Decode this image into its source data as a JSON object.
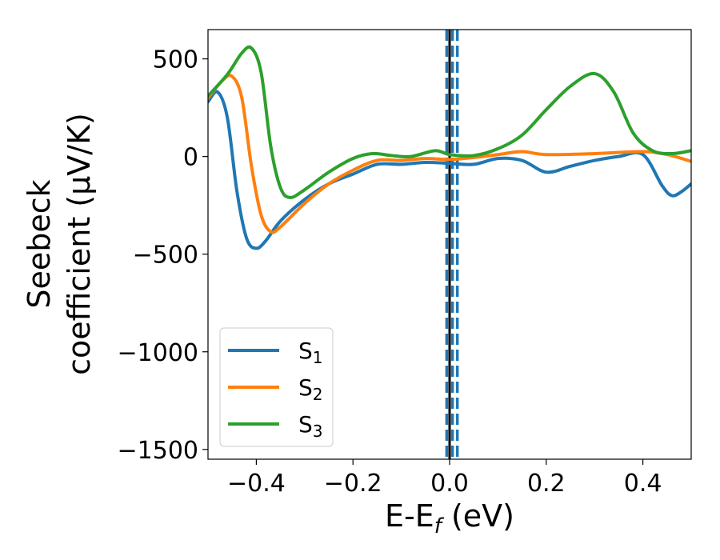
{
  "chart_data": {
    "type": "line",
    "title": "",
    "xlabel": "E-E_f (eV)",
    "xlabel_parts": {
      "prefix": "E-E",
      "sub": "f",
      "suffix": " (eV)"
    },
    "ylabel_line1": "Seebeck",
    "ylabel_line2": "coefficient  (μV/K)",
    "xlim": [
      -0.5,
      0.5
    ],
    "ylim": [
      -1550,
      650
    ],
    "xticks": [
      -0.4,
      -0.2,
      0.0,
      0.2,
      0.4
    ],
    "xtick_labels": [
      "−0.4",
      "−0.2",
      "0.0",
      "0.2",
      "0.4"
    ],
    "yticks": [
      -1500,
      -1000,
      -500,
      0,
      500
    ],
    "ytick_labels": [
      "−1500",
      "−1000",
      "−500",
      "0",
      "500"
    ],
    "grid": false,
    "legend_position": "lower-left",
    "vlines": [
      {
        "x": 0.0,
        "color": "#000000",
        "style": "solid"
      },
      {
        "x": -0.006,
        "color": "#1f77b4",
        "style": "dashed"
      },
      {
        "x": 0.006,
        "color": "#1f77b4",
        "style": "dashed"
      },
      {
        "x": 0.016,
        "color": "#1f77b4",
        "style": "dashed"
      }
    ],
    "series": [
      {
        "name": "S1",
        "label_main": "S",
        "label_sub": "1",
        "color": "#1f77b4",
        "x": [
          -0.5,
          -0.48,
          -0.46,
          -0.44,
          -0.42,
          -0.4,
          -0.38,
          -0.35,
          -0.3,
          -0.25,
          -0.2,
          -0.15,
          -0.1,
          -0.05,
          0.0,
          0.05,
          0.1,
          0.15,
          0.2,
          0.25,
          0.3,
          0.35,
          0.4,
          0.44,
          0.46,
          0.48,
          0.5
        ],
        "y": [
          280,
          330,
          200,
          -180,
          -420,
          -470,
          -430,
          -330,
          -220,
          -140,
          -90,
          -40,
          -40,
          -30,
          -35,
          -40,
          -10,
          -20,
          -80,
          -50,
          -20,
          0,
          10,
          -150,
          -200,
          -180,
          -140
        ]
      },
      {
        "name": "S2",
        "label_main": "S",
        "label_sub": "2",
        "color": "#ff7f0e",
        "x": [
          -0.5,
          -0.47,
          -0.45,
          -0.43,
          -0.41,
          -0.39,
          -0.37,
          -0.35,
          -0.3,
          -0.25,
          -0.2,
          -0.15,
          -0.1,
          -0.05,
          0.0,
          0.05,
          0.1,
          0.15,
          0.2,
          0.3,
          0.4,
          0.45,
          0.5
        ],
        "y": [
          300,
          390,
          410,
          300,
          -50,
          -300,
          -385,
          -360,
          -240,
          -140,
          -70,
          -20,
          -20,
          -10,
          -15,
          -5,
          10,
          25,
          10,
          15,
          25,
          10,
          -25
        ]
      },
      {
        "name": "S3",
        "label_main": "S",
        "label_sub": "3",
        "color": "#2ca02c",
        "x": [
          -0.5,
          -0.46,
          -0.43,
          -0.41,
          -0.39,
          -0.37,
          -0.35,
          -0.33,
          -0.3,
          -0.25,
          -0.2,
          -0.16,
          -0.12,
          -0.08,
          -0.03,
          0.0,
          0.05,
          0.1,
          0.15,
          0.2,
          0.25,
          0.3,
          0.34,
          0.38,
          0.42,
          0.46,
          0.5
        ],
        "y": [
          310,
          420,
          530,
          555,
          430,
          50,
          -160,
          -210,
          -170,
          -80,
          -10,
          15,
          5,
          0,
          30,
          10,
          5,
          40,
          110,
          240,
          360,
          425,
          330,
          120,
          30,
          15,
          30
        ]
      }
    ]
  }
}
